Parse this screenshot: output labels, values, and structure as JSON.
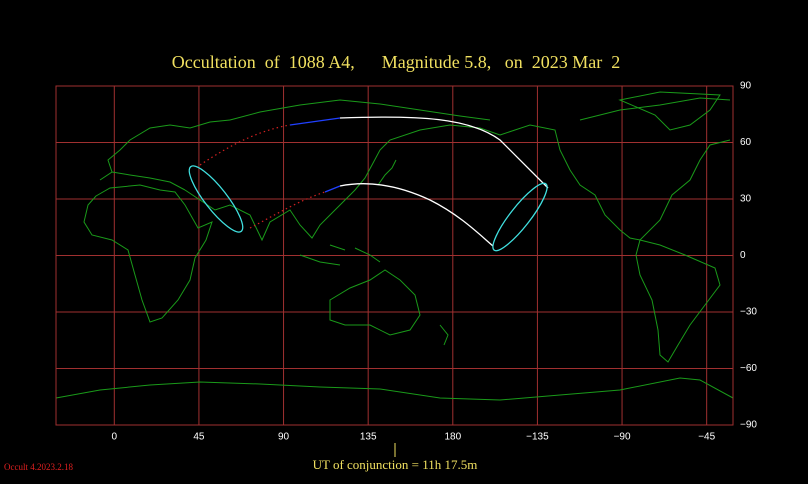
{
  "title": "Occultation  of  1088 A4,      Magnitude 5.8,   on  2023 Mar  2",
  "map": {
    "xlim": [
      -31,
      329
    ],
    "ylim": [
      -90,
      90
    ],
    "xticks": [
      0,
      45,
      90,
      135,
      180,
      {
        "value": -135,
        "label": "−135"
      },
      {
        "value": -90,
        "label": "−90"
      },
      {
        "value": -45,
        "label": "−45"
      }
    ],
    "yticks": [
      90,
      60,
      30,
      0,
      {
        "value": -30,
        "label": "−30"
      },
      {
        "value": -60,
        "label": "−60"
      },
      {
        "value": -90,
        "label": "−90"
      }
    ]
  },
  "footer": "UT of conjunction = 11h 17.5m",
  "version": "Occult 4.2023.2.18"
}
